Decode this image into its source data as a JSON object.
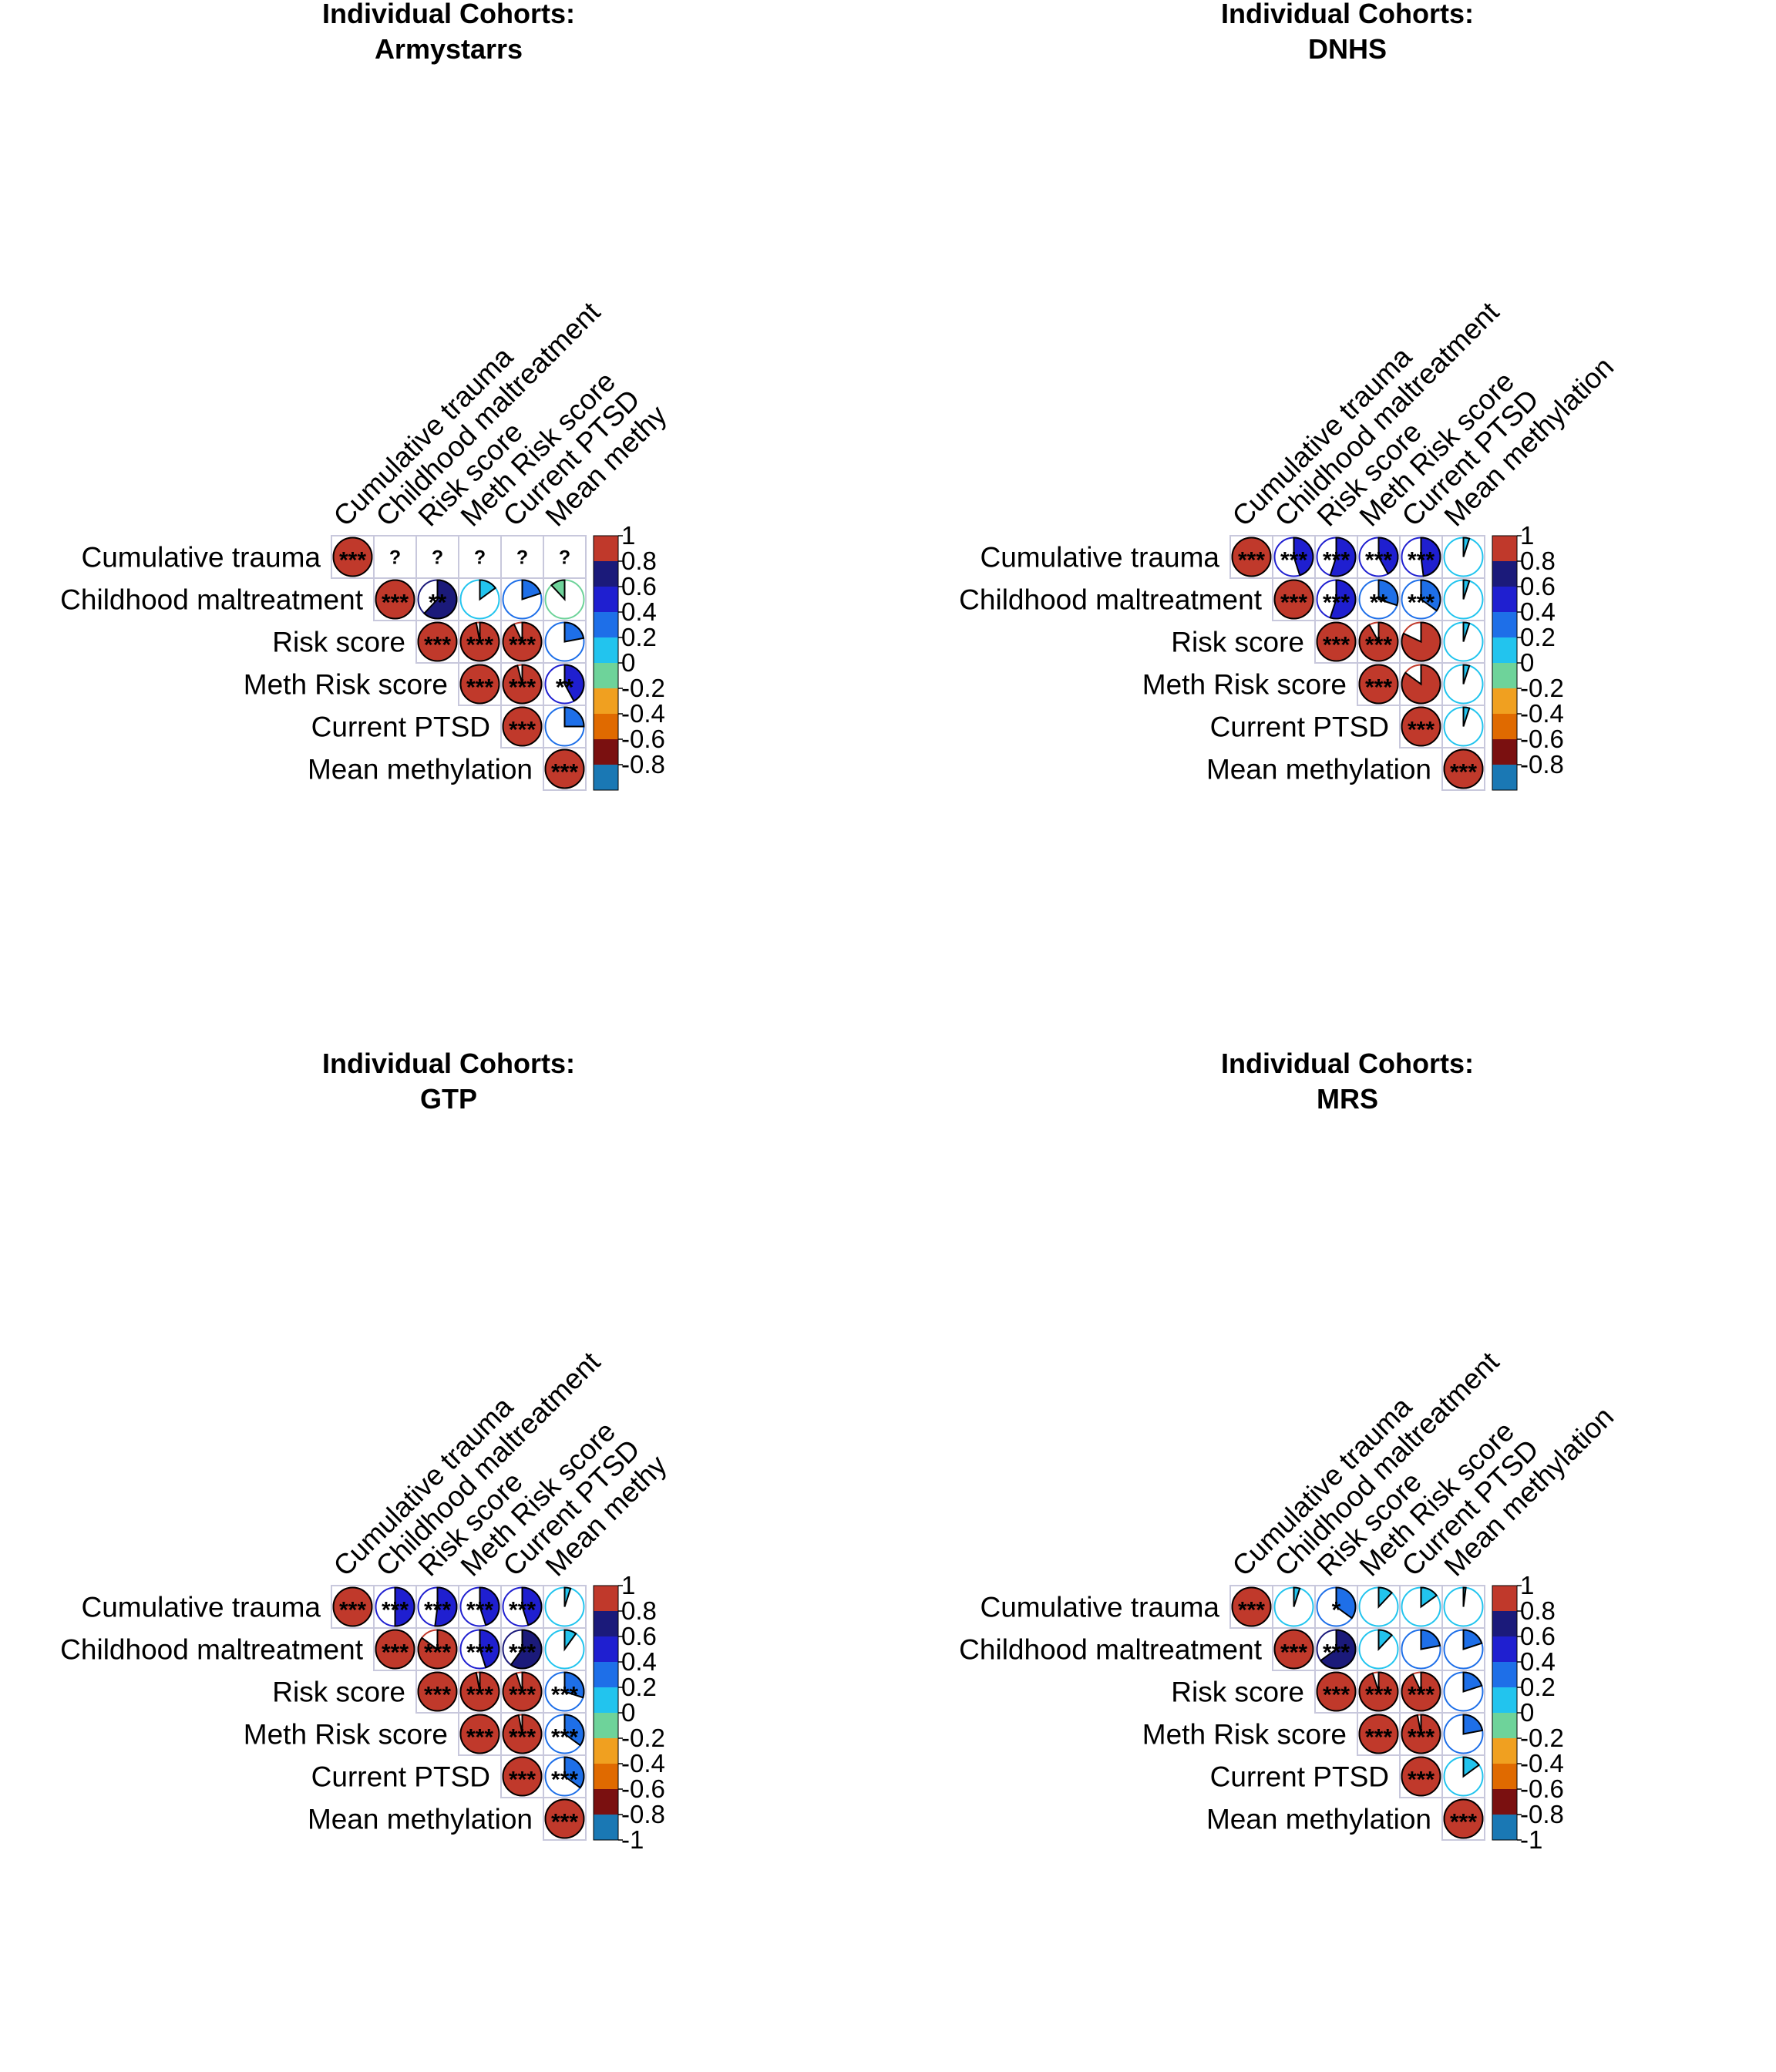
{
  "figure_title": "Individual Cohorts",
  "chart_data": [
    {
      "type": "heatmap",
      "title": "Individual Cohorts:",
      "subtitle": "Armystarrs",
      "variables": [
        "Cumulative trauma",
        "Childhood maltreatment",
        "Risk score",
        "Meth Risk score",
        "Current PTSD",
        "Mean methylation"
      ],
      "column_labels": [
        "Cumulative trauma",
        "Childhood maltreatment",
        "Risk score",
        "Meth Risk score",
        "Current PTSD",
        "Mean methy"
      ],
      "matrix": [
        [
          1,
          null,
          null,
          null,
          null,
          null
        ],
        [
          null,
          1,
          0.62,
          0.15,
          0.2,
          -0.12
        ],
        [
          null,
          0.62,
          1,
          0.97,
          0.93,
          0.22
        ],
        [
          null,
          0.15,
          0.97,
          1,
          0.96,
          0.42
        ],
        [
          null,
          0.2,
          0.93,
          0.96,
          1,
          0.25
        ],
        [
          null,
          -0.12,
          0.22,
          0.42,
          0.25,
          1
        ]
      ],
      "significance": [
        [
          "***",
          "?",
          "?",
          "?",
          "?",
          "?"
        ],
        [
          "",
          "***",
          "**",
          "",
          "",
          ""
        ],
        [
          "",
          "",
          "***",
          "***",
          "***",
          ""
        ],
        [
          "",
          "",
          "",
          "***",
          "***",
          "**"
        ],
        [
          "",
          "",
          "",
          "",
          "***",
          ""
        ],
        [
          "",
          "",
          "",
          "",
          "",
          "***"
        ]
      ],
      "colorbar_ticks": [
        "1",
        "0.8",
        "0.6",
        "0.4",
        "0.2",
        "0",
        "-0.2",
        "-0.4",
        "-0.6",
        "-0.8"
      ]
    },
    {
      "type": "heatmap",
      "title": "Individual Cohorts:",
      "subtitle": "DNHS",
      "variables": [
        "Cumulative trauma",
        "Childhood maltreatment",
        "Risk score",
        "Meth Risk score",
        "Current PTSD",
        "Mean methylation"
      ],
      "column_labels": [
        "Cumulative trauma",
        "Childhood maltreatment",
        "Risk score",
        "Meth Risk score",
        "Current PTSD",
        "Mean methylation"
      ],
      "matrix": [
        [
          1,
          0.45,
          0.55,
          0.42,
          0.48,
          0.05
        ],
        [
          0.45,
          1,
          0.55,
          0.3,
          0.35,
          0.05
        ],
        [
          0.55,
          0.55,
          1,
          0.92,
          0.82,
          0.05
        ],
        [
          0.42,
          0.3,
          0.92,
          1,
          0.85,
          0.05
        ],
        [
          0.48,
          0.35,
          0.82,
          0.85,
          1,
          0.05
        ],
        [
          0.05,
          0.05,
          0.05,
          0.05,
          0.05,
          1
        ]
      ],
      "significance": [
        [
          "***",
          "***",
          "***",
          "***",
          "***",
          ""
        ],
        [
          "",
          "***",
          "***",
          "**",
          "***",
          ""
        ],
        [
          "",
          "",
          "***",
          "***",
          "",
          ""
        ],
        [
          "",
          "",
          "",
          "***",
          "",
          ""
        ],
        [
          "",
          "",
          "",
          "",
          "***",
          ""
        ],
        [
          "",
          "",
          "",
          "",
          "",
          "***"
        ]
      ],
      "colorbar_ticks": [
        "1",
        "0.8",
        "0.6",
        "0.4",
        "0.2",
        "0",
        "-0.2",
        "-0.4",
        "-0.6",
        "-0.8"
      ]
    },
    {
      "type": "heatmap",
      "title": "Individual Cohorts:",
      "subtitle": "GTP",
      "variables": [
        "Cumulative trauma",
        "Childhood maltreatment",
        "Risk score",
        "Meth Risk score",
        "Current PTSD",
        "Mean methylation"
      ],
      "column_labels": [
        "Cumulative trauma",
        "Childhood maltreatment",
        "Risk score",
        "Meth Risk score",
        "Current PTSD",
        "Mean methy"
      ],
      "matrix": [
        [
          1,
          0.5,
          0.52,
          0.45,
          0.45,
          0.05
        ],
        [
          0.5,
          1,
          0.85,
          0.45,
          0.6,
          0.1
        ],
        [
          0.52,
          0.85,
          1,
          0.97,
          0.95,
          0.3
        ],
        [
          0.45,
          0.45,
          0.97,
          1,
          0.97,
          0.35
        ],
        [
          0.45,
          0.6,
          0.95,
          0.97,
          1,
          0.35
        ],
        [
          0.05,
          0.1,
          0.3,
          0.35,
          0.35,
          1
        ]
      ],
      "significance": [
        [
          "***",
          "***",
          "***",
          "***",
          "***",
          ""
        ],
        [
          "",
          "***",
          "***",
          "***",
          "***",
          ""
        ],
        [
          "",
          "",
          "***",
          "***",
          "***",
          "***"
        ],
        [
          "",
          "",
          "",
          "***",
          "***",
          "***"
        ],
        [
          "",
          "",
          "",
          "",
          "***",
          "***"
        ],
        [
          "",
          "",
          "",
          "",
          "",
          "***"
        ]
      ],
      "colorbar_ticks": [
        "1",
        "0.8",
        "0.6",
        "0.4",
        "0.2",
        "0",
        "-0.2",
        "-0.4",
        "-0.6",
        "-0.8",
        "-1"
      ]
    },
    {
      "type": "heatmap",
      "title": "Individual Cohorts:",
      "subtitle": "MRS",
      "variables": [
        "Cumulative trauma",
        "Childhood maltreatment",
        "Risk score",
        "Meth Risk score",
        "Current PTSD",
        "Mean methylation"
      ],
      "column_labels": [
        "Cumulative trauma",
        "Childhood maltreatment",
        "Risk score",
        "Meth Risk score",
        "Current PTSD",
        "Mean methylation"
      ],
      "matrix": [
        [
          1,
          0.05,
          0.35,
          0.12,
          0.15,
          0.02
        ],
        [
          0.05,
          1,
          0.65,
          0.12,
          0.22,
          0.2
        ],
        [
          0.35,
          0.65,
          1,
          0.95,
          0.93,
          0.2
        ],
        [
          0.12,
          0.12,
          0.95,
          1,
          0.97,
          0.22
        ],
        [
          0.15,
          0.22,
          0.93,
          0.97,
          1,
          0.15
        ],
        [
          0.02,
          0.2,
          0.2,
          0.22,
          0.15,
          1
        ]
      ],
      "significance": [
        [
          "***",
          "",
          "*",
          "",
          "",
          ""
        ],
        [
          "",
          "***",
          "***",
          "",
          "",
          ""
        ],
        [
          "",
          "",
          "***",
          "***",
          "***",
          ""
        ],
        [
          "",
          "",
          "",
          "***",
          "***",
          ""
        ],
        [
          "",
          "",
          "",
          "",
          "***",
          ""
        ],
        [
          "",
          "",
          "",
          "",
          "",
          "***"
        ]
      ],
      "colorbar_ticks": [
        "1",
        "0.8",
        "0.6",
        "0.4",
        "0.2",
        "0",
        "-0.2",
        "-0.4",
        "-0.6",
        "-0.8",
        "-1"
      ]
    }
  ],
  "colors": {
    "band_0.8_1": "#c0392b",
    "band_0.6_0.8": "#1b1a7a",
    "band_0.4_0.6": "#1f1fd0",
    "band_0.2_0.4": "#1e6fe8",
    "band_0_0.2": "#22c4ee",
    "band_-0.2_0": "#6ed39a",
    "band_-0.4_-0.2": "#f0a020",
    "band_-0.6_-0.4": "#e06a00",
    "band_-0.8_-0.6": "#7a1010",
    "band_-1_-0.8": "#1a78b4",
    "grid": "#c8c8dc"
  }
}
